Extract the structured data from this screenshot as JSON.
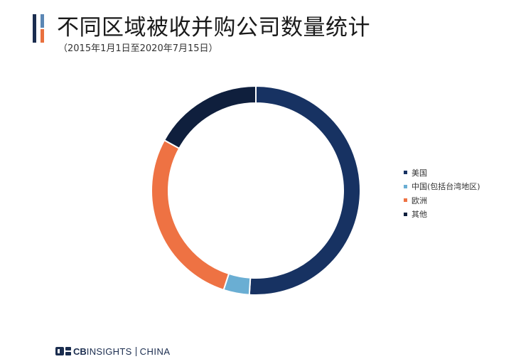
{
  "header": {
    "title": "不同区域被收并购公司数量统计",
    "subtitle": "（2015年1月1日至2020年7月15日）",
    "accent_colors": [
      "#1b2d4f",
      "#5b87b5",
      "#e9703e"
    ]
  },
  "chart_data": {
    "type": "pie",
    "title": "不同区域被收并购公司数量统计",
    "subtitle": "（2015年1月1日至2020年7月15日）",
    "donut": true,
    "start_angle_deg": 0,
    "direction": "clockwise",
    "legend_position": "right",
    "categories": [
      "美国",
      "中国(包括台湾地区)",
      "欧洲",
      "其他"
    ],
    "values": [
      51,
      4,
      28,
      17
    ],
    "unit": "%",
    "colors": [
      "#173262",
      "#6aaed3",
      "#ee7243",
      "#0f1f3d"
    ]
  },
  "brand": {
    "cb": "CB",
    "insights": "INSIGHTS",
    "china": "CHINA",
    "icon": "cb-insights-logo-icon",
    "color": "#1b2d4f"
  }
}
